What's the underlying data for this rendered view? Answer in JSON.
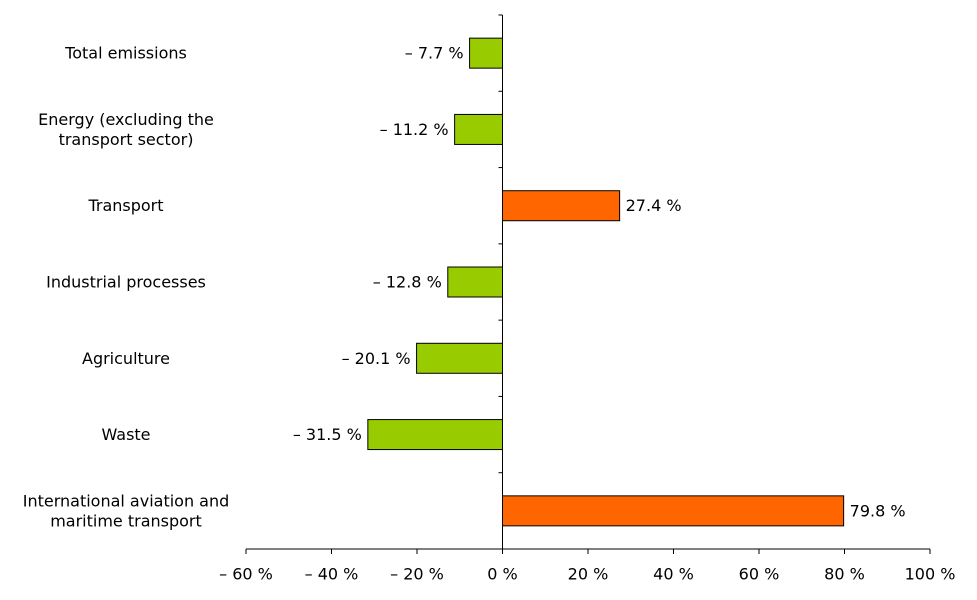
{
  "chart_data": {
    "type": "bar",
    "orientation": "horizontal",
    "categories": [
      [
        "Total emissions"
      ],
      [
        "Energy (excluding the",
        "transport sector)"
      ],
      [
        "Transport"
      ],
      [
        "Industrial processes"
      ],
      [
        "Agriculture"
      ],
      [
        "Waste"
      ],
      [
        "International aviation and",
        "maritime transport"
      ]
    ],
    "values": [
      -7.7,
      -11.2,
      27.4,
      -12.8,
      -20.1,
      -31.5,
      79.8
    ],
    "data_labels": [
      "– 7.7 %",
      "– 11.2 %",
      "27.4 %",
      "– 12.8 %",
      "– 20.1 %",
      "– 31.5 %",
      "79.8 %"
    ],
    "xlim": [
      -60,
      100
    ],
    "xticks": [
      -60,
      -40,
      -20,
      0,
      20,
      40,
      60,
      80,
      100
    ],
    "xtick_labels": [
      "– 60 %",
      "– 40 %",
      "– 20 %",
      "0 %",
      "20 %",
      "40 %",
      "60 %",
      "80 %",
      "100 %"
    ],
    "title": "",
    "xlabel": "",
    "ylabel": "",
    "grid": false,
    "legend": "none",
    "colors": {
      "negative": "#99cc00",
      "positive": "#ff6600",
      "outline": "#000000",
      "axis": "#000000"
    }
  }
}
